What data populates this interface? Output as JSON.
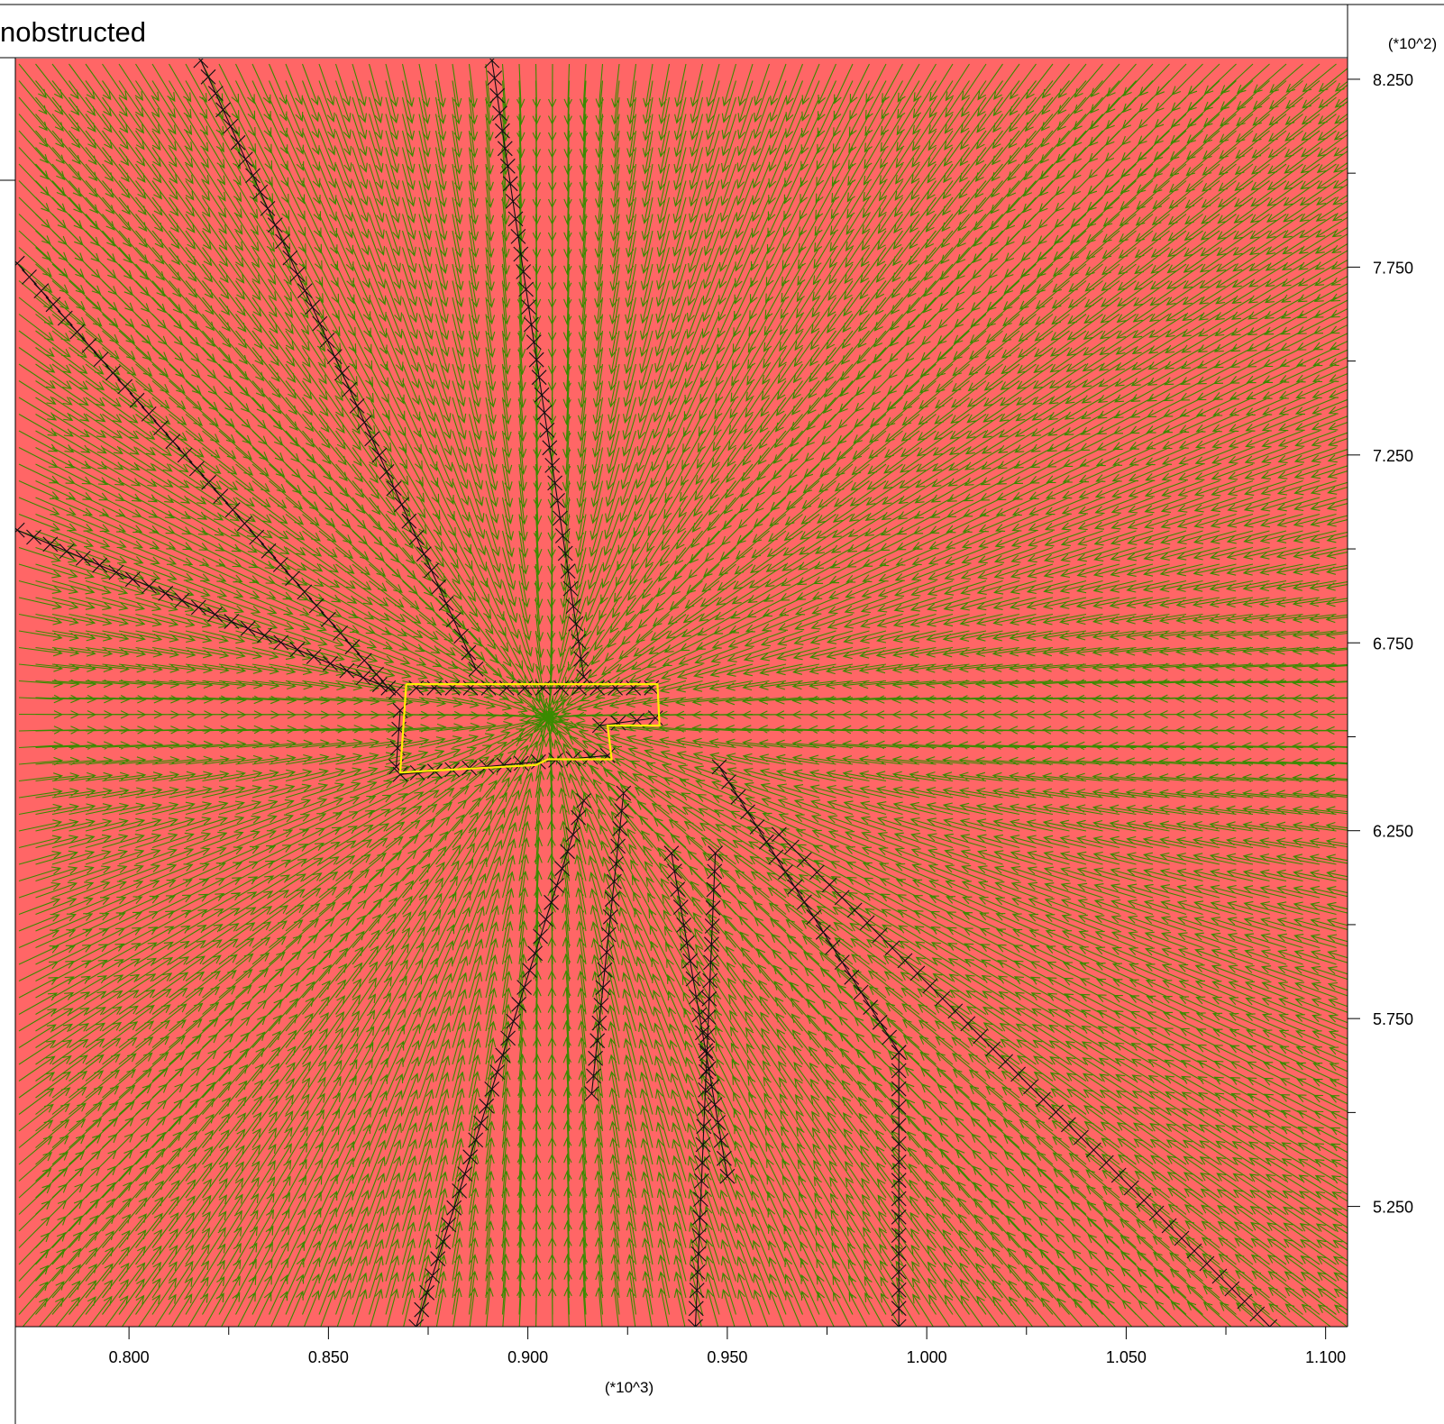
{
  "chart_data": {
    "type": "vector-field",
    "title": "nobstructed",
    "x_multiplier": "(*10^3)",
    "y_multiplier": "(*10^2)",
    "xlim": [
      0.7715,
      1.1055
    ],
    "ylim": [
      4.93,
      8.305
    ],
    "x_ticks": [
      "0.800",
      "0.850",
      "0.900",
      "0.950",
      "1.000",
      "1.050",
      "1.100"
    ],
    "x_tick_values": [
      0.8,
      0.85,
      0.9,
      0.95,
      1.0,
      1.05,
      1.1
    ],
    "x_minor_tick_values": [
      0.825,
      0.875,
      0.925,
      0.975,
      1.025,
      1.075
    ],
    "y_ticks": [
      "8.250",
      "7.750",
      "7.250",
      "6.750",
      "6.250",
      "5.750",
      "5.250"
    ],
    "y_tick_values": [
      8.25,
      7.75,
      7.25,
      6.75,
      6.25,
      5.75,
      5.25
    ],
    "y_minor_tick_values": [
      8.0,
      7.5,
      7.0,
      6.5,
      6.0,
      5.5
    ],
    "field": {
      "focus": [
        0.905,
        6.55
      ],
      "description_arrows": "green arrows converging toward the focus"
    },
    "outline": {
      "name": "building outline",
      "points": [
        [
          0.8695,
          6.64
        ],
        [
          0.9325,
          6.64
        ],
        [
          0.933,
          6.53
        ],
        [
          0.92,
          6.53
        ],
        [
          0.921,
          6.44
        ],
        [
          0.905,
          6.44
        ],
        [
          0.902,
          6.425
        ],
        [
          0.868,
          6.405
        ],
        [
          0.8695,
          6.64
        ]
      ]
    },
    "cross_lines": [
      {
        "from": [
          0.818,
          8.3
        ],
        "to": [
          0.887,
          6.68
        ]
      },
      {
        "from": [
          0.891,
          8.3
        ],
        "to": [
          0.914,
          6.66
        ]
      },
      {
        "from": [
          0.772,
          7.76
        ],
        "to": [
          0.865,
          6.63
        ]
      },
      {
        "from": [
          0.772,
          7.05
        ],
        "to": [
          0.867,
          6.62
        ]
      },
      {
        "from": [
          0.872,
          6.63
        ],
        "to": [
          0.931,
          6.63
        ]
      },
      {
        "from": [
          0.868,
          6.57
        ],
        "to": [
          0.867,
          6.42
        ]
      },
      {
        "from": [
          0.868,
          6.4
        ],
        "to": [
          0.92,
          6.45
        ]
      },
      {
        "from": [
          0.918,
          6.53
        ],
        "to": [
          0.932,
          6.55
        ]
      },
      {
        "from": [
          0.914,
          6.33
        ],
        "to": [
          0.872,
          4.93
        ]
      },
      {
        "from": [
          0.924,
          6.35
        ],
        "to": [
          0.916,
          5.55
        ]
      },
      {
        "from": [
          0.936,
          6.19
        ],
        "to": [
          0.95,
          5.33
        ]
      },
      {
        "from": [
          0.947,
          6.19
        ],
        "to": [
          0.942,
          4.93
        ]
      },
      {
        "from": [
          0.948,
          6.42
        ],
        "to": [
          0.993,
          5.66
        ]
      },
      {
        "from": [
          0.993,
          5.66
        ],
        "to": [
          0.993,
          4.93
        ]
      },
      {
        "from": [
          0.963,
          6.24
        ],
        "to": [
          1.086,
          4.93
        ]
      }
    ]
  }
}
